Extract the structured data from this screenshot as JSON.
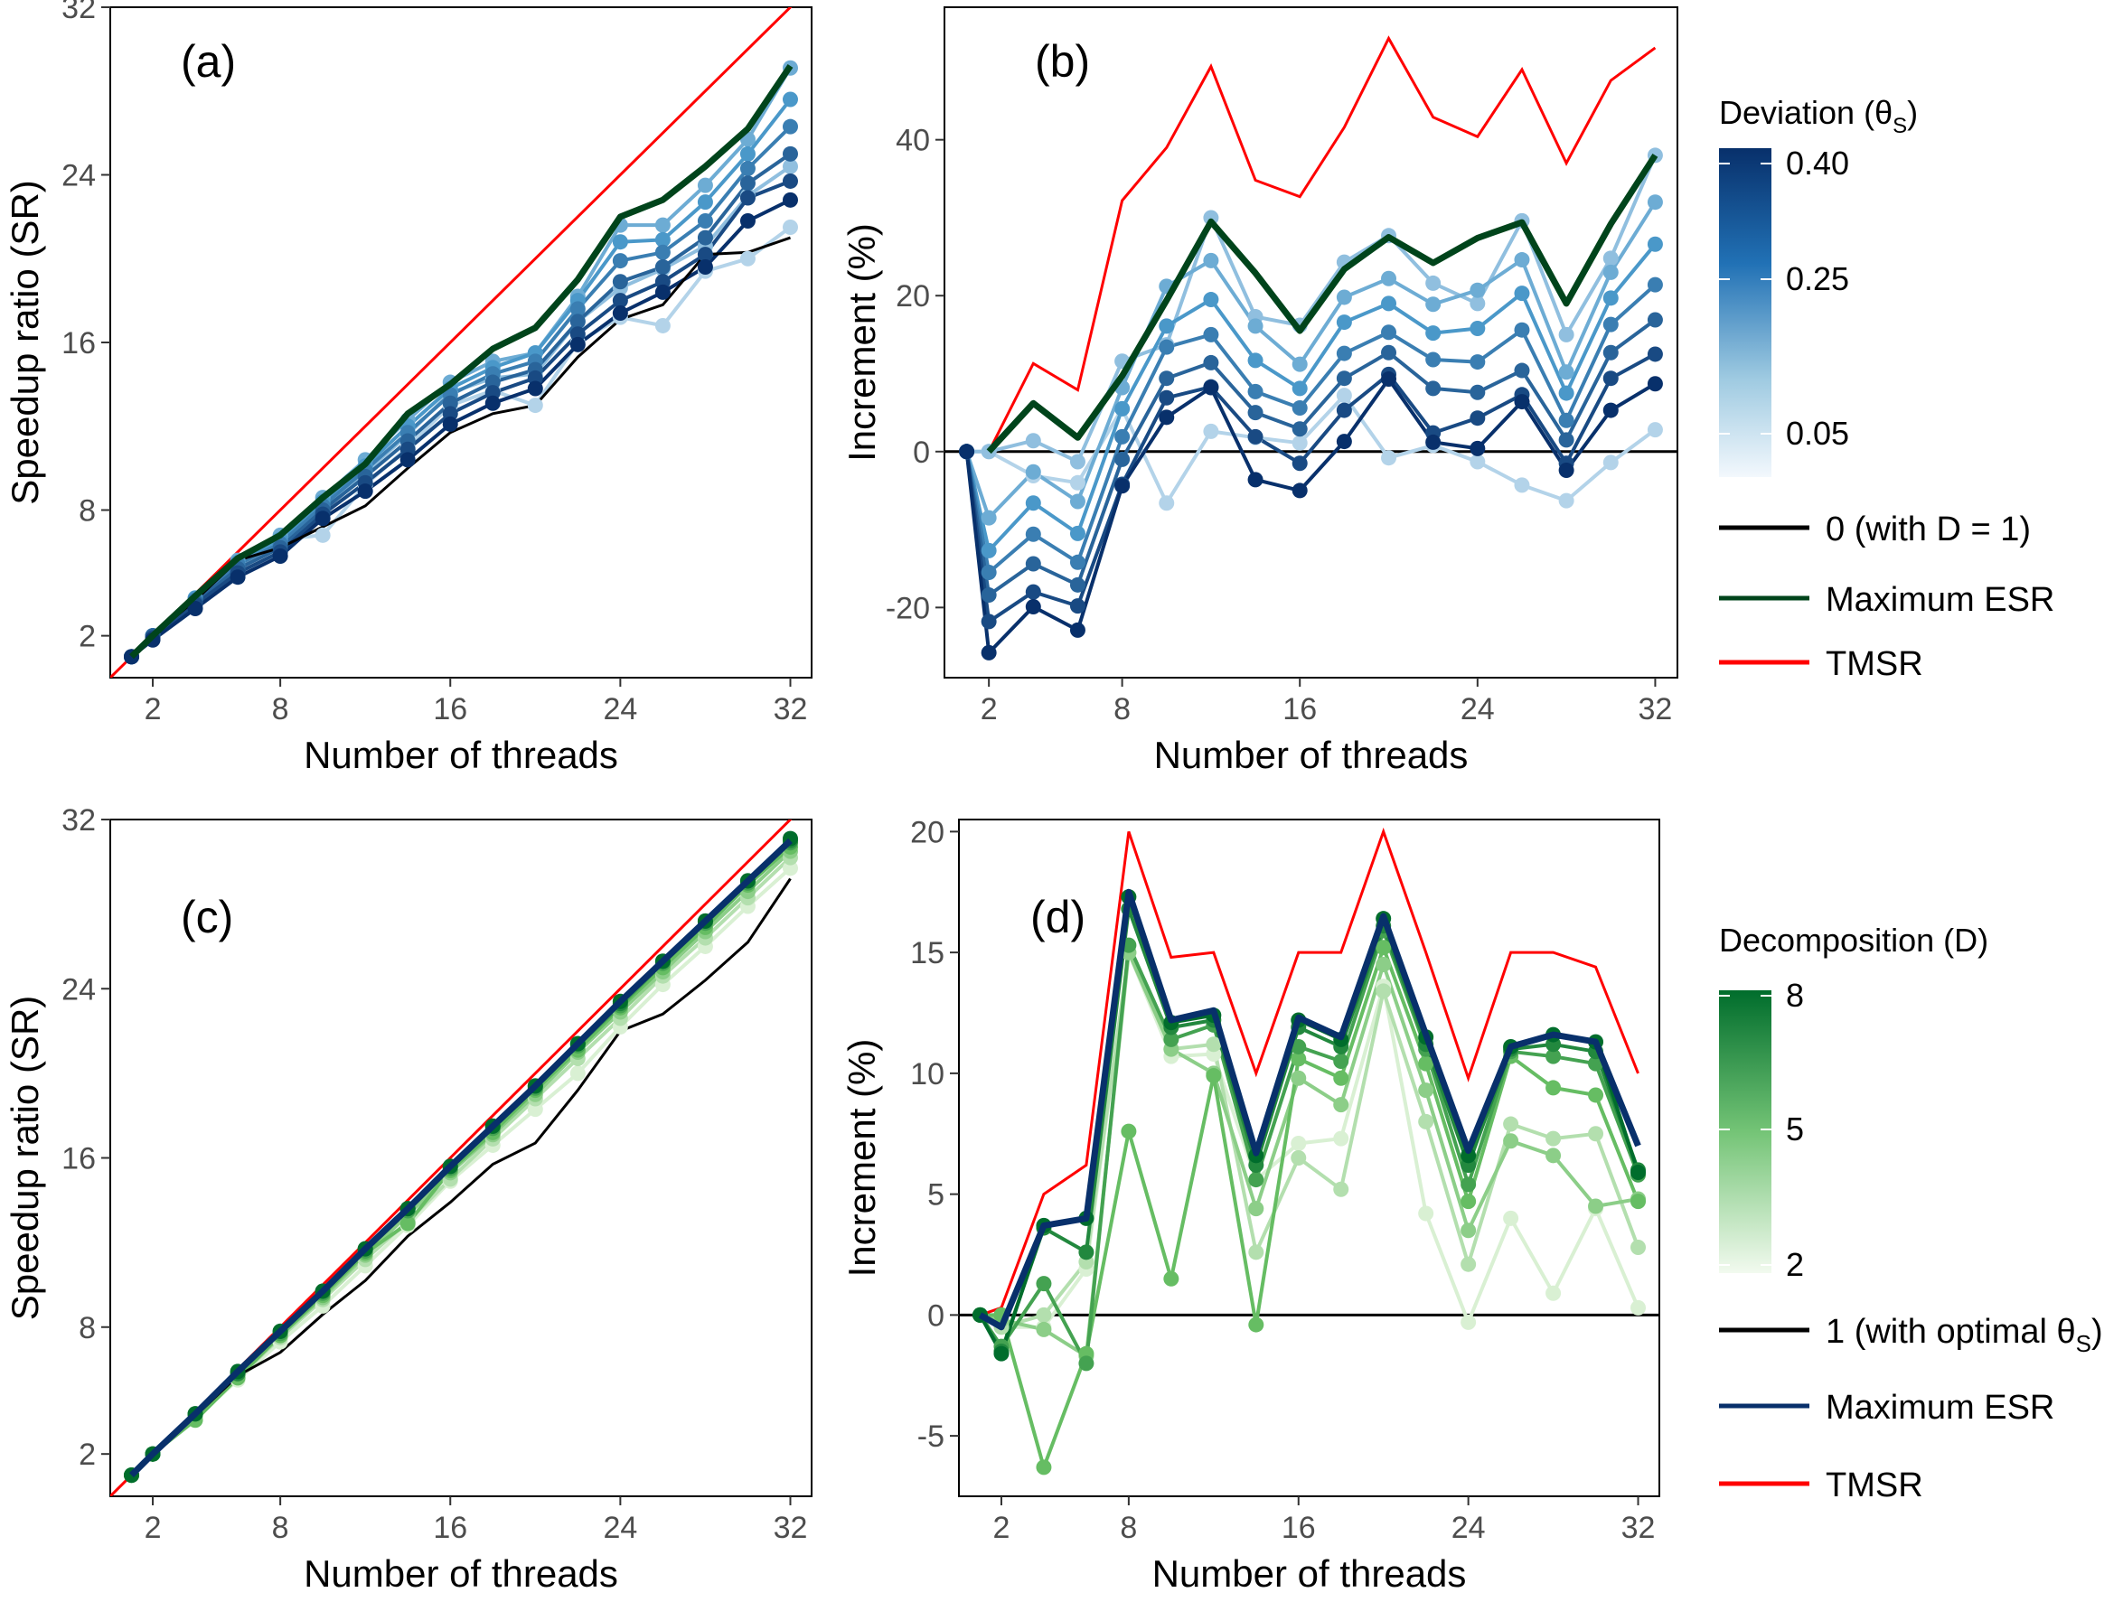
{
  "colors": {
    "tmsr": "#ff0000",
    "baseline": "#000000",
    "blue_dark": "#08306b",
    "blue_light": "#deebf7",
    "green_dark": "#00441b",
    "green_light": "#e5f5e0",
    "max_esr_top": "#00441b",
    "max_esr_bottom": "#08306b"
  },
  "legend_top": {
    "title_main": "Deviation (θ",
    "title_sub": "S",
    "title_end": ")",
    "colorbar_ticks": [
      "0.40",
      "0.25",
      "0.05"
    ],
    "colorbar_tick_values": [
      0.4,
      0.25,
      0.05
    ],
    "colorbar_range": [
      0.0,
      0.4
    ],
    "items": [
      {
        "label": "0 (with D = 1)",
        "color": "#000000"
      },
      {
        "label": "Maximum ESR",
        "color": "#00441b"
      },
      {
        "label": "TMSR",
        "color": "#ff0000"
      }
    ]
  },
  "legend_bottom": {
    "title": "Decomposition (D)",
    "colorbar_ticks": [
      "8",
      "5",
      "2"
    ],
    "colorbar_tick_values": [
      8,
      5,
      2
    ],
    "colorbar_range": [
      2,
      8
    ],
    "items": [
      {
        "label": "1 (with optimal θ",
        "sub": "S",
        "end": ")",
        "color": "#000000"
      },
      {
        "label": "Maximum ESR",
        "color": "#08306b"
      },
      {
        "label": "TMSR",
        "color": "#ff0000"
      }
    ]
  },
  "chart_data": [
    {
      "panel": "(a)",
      "type": "line",
      "xlabel": "Number of threads",
      "ylabel": "Speedup ratio (SR)",
      "xlim": [
        0,
        33
      ],
      "ylim": [
        0,
        32
      ],
      "x_ticks": [
        2,
        8,
        16,
        24,
        32
      ],
      "y_ticks": [
        2,
        8,
        16,
        24,
        32
      ],
      "x": [
        1,
        2,
        4,
        6,
        8,
        10,
        12,
        14,
        16,
        18,
        20,
        22,
        24,
        26,
        28,
        30,
        32
      ],
      "tmsr": {
        "x": [
          0,
          33
        ],
        "y": [
          0,
          33
        ]
      },
      "baseline": {
        "name": "0 (with D = 1)",
        "values": [
          1,
          2,
          3.7,
          5.6,
          6.2,
          7.2,
          8.2,
          10.0,
          11.7,
          12.6,
          13.0,
          15.3,
          17.1,
          17.8,
          20.2,
          20.3,
          21.0
        ]
      },
      "max_esr": {
        "name": "Maximum ESR",
        "values": [
          1,
          2,
          3.9,
          5.7,
          6.8,
          8.6,
          10.2,
          12.6,
          14.0,
          15.7,
          16.7,
          19.0,
          22.0,
          22.8,
          24.4,
          26.2,
          29.2
        ]
      },
      "deviation_series": [
        {
          "level": 0.05,
          "values": [
            1,
            2,
            3.6,
            5.5,
            6.6,
            6.8,
            9.2,
            11.0,
            13.0,
            13.7,
            13.0,
            16.0,
            17.2,
            16.8,
            19.4,
            20.0,
            21.5
          ]
        },
        {
          "level": 0.1,
          "values": [
            1,
            2,
            3.7,
            5.5,
            6.7,
            8.2,
            9.8,
            11.6,
            13.6,
            14.3,
            14.5,
            17.0,
            18.6,
            19.5,
            20.6,
            23.0,
            24.4
          ]
        },
        {
          "level": 0.15,
          "values": [
            1,
            2,
            3.8,
            5.6,
            6.8,
            8.6,
            10.4,
            12.3,
            14.1,
            15.1,
            15.5,
            18.2,
            21.6,
            21.6,
            23.5,
            25.7,
            29.1
          ]
        },
        {
          "level": 0.2,
          "values": [
            1,
            2,
            3.8,
            5.5,
            6.6,
            8.4,
            10.1,
            12.0,
            13.8,
            14.8,
            15.5,
            18.0,
            20.8,
            20.9,
            22.7,
            25.0,
            27.6
          ]
        },
        {
          "level": 0.25,
          "values": [
            1,
            2,
            3.7,
            5.4,
            6.4,
            8.2,
            9.9,
            11.7,
            13.5,
            14.5,
            15.1,
            17.6,
            19.9,
            20.3,
            21.8,
            24.3,
            26.3
          ]
        },
        {
          "level": 0.3,
          "values": [
            1,
            2,
            3.6,
            5.2,
            6.2,
            8.0,
            9.6,
            11.3,
            13.1,
            14.1,
            14.7,
            17.0,
            18.9,
            19.6,
            21.0,
            23.6,
            25.0
          ]
        },
        {
          "level": 0.35,
          "values": [
            1,
            1.9,
            3.5,
            5.0,
            6.0,
            7.8,
            9.3,
            10.9,
            12.6,
            13.6,
            14.3,
            16.4,
            18.0,
            18.9,
            20.2,
            22.9,
            23.7
          ]
        },
        {
          "level": 0.4,
          "values": [
            1,
            1.8,
            3.3,
            4.8,
            5.8,
            7.6,
            8.9,
            10.4,
            12.1,
            13.1,
            13.8,
            15.9,
            17.4,
            18.4,
            19.6,
            21.8,
            22.8
          ]
        }
      ]
    },
    {
      "panel": "(b)",
      "type": "line",
      "xlabel": "Number of threads",
      "ylabel": "Increment (%)",
      "xlim": [
        0,
        33
      ],
      "ylim": [
        -29,
        57
      ],
      "x_ticks": [
        2,
        8,
        16,
        24,
        32
      ],
      "y_ticks": [
        -20,
        0,
        20,
        40
      ],
      "x": [
        1,
        2,
        4,
        6,
        8,
        10,
        12,
        14,
        16,
        18,
        20,
        22,
        24,
        26,
        28,
        30,
        32
      ],
      "baseline": {
        "name": "0 (with D = 1)",
        "value": 0
      },
      "tmsr": {
        "name": "TMSR",
        "x": [
          2,
          4,
          6,
          8,
          10,
          12,
          14,
          16,
          18,
          20,
          22,
          24,
          26,
          28,
          30,
          32
        ],
        "values": [
          0,
          11.3,
          7.9,
          32.2,
          39.0,
          49.4,
          34.8,
          32.7,
          41.6,
          53.0,
          42.9,
          40.4,
          49.0,
          37.0,
          47.6,
          51.8
        ]
      },
      "max_esr": {
        "name": "Maximum ESR",
        "x": [
          2,
          4,
          6,
          8,
          10,
          12,
          14,
          16,
          18,
          20,
          22,
          24,
          26,
          28,
          30,
          32
        ],
        "values": [
          0,
          6.2,
          1.8,
          9.7,
          19.4,
          29.5,
          22.9,
          15.5,
          23.4,
          27.5,
          24.2,
          27.4,
          29.4,
          19.0,
          29.2,
          38.0
        ]
      },
      "deviation_series": [
        {
          "level": 0.05,
          "values": [
            0,
            0,
            -3.1,
            -4.0,
            5.5,
            -6.6,
            2.6,
            1.8,
            1.1,
            7.2,
            -0.8,
            0.8,
            -1.3,
            -4.3,
            -6.3,
            -1.4,
            2.8
          ]
        },
        {
          "level": 0.1,
          "values": [
            0,
            0,
            1.4,
            -1.3,
            11.6,
            13.7,
            30.0,
            17.3,
            16.2,
            24.3,
            27.7,
            21.6,
            19.0,
            29.6,
            15.0,
            24.8,
            38.0
          ]
        },
        {
          "level": 0.15,
          "values": [
            0,
            -8.5,
            -2.6,
            -6.4,
            8.2,
            21.2,
            24.5,
            16.1,
            11.2,
            19.8,
            22.2,
            18.9,
            20.7,
            24.6,
            10.2,
            23.0,
            32.0
          ]
        },
        {
          "level": 0.2,
          "values": [
            0,
            -12.7,
            -6.6,
            -10.5,
            5.5,
            16.1,
            19.5,
            11.7,
            8.1,
            16.6,
            19.0,
            15.2,
            15.8,
            20.3,
            7.5,
            19.7,
            26.6
          ]
        },
        {
          "level": 0.25,
          "values": [
            0,
            -15.5,
            -10.6,
            -14.2,
            1.9,
            13.4,
            15.0,
            7.7,
            5.6,
            12.6,
            15.3,
            11.8,
            11.5,
            15.6,
            4.0,
            16.3,
            21.4
          ]
        },
        {
          "level": 0.3,
          "values": [
            0,
            -18.4,
            -14.4,
            -17.1,
            -1.0,
            9.4,
            11.4,
            5.0,
            2.9,
            9.4,
            12.7,
            8.1,
            7.6,
            10.4,
            1.5,
            12.7,
            16.9
          ]
        },
        {
          "level": 0.35,
          "values": [
            0,
            -21.8,
            -18.0,
            -19.8,
            -4.2,
            6.9,
            8.3,
            1.9,
            -1.5,
            5.3,
            9.9,
            2.4,
            4.3,
            7.3,
            -1.5,
            9.4,
            12.5
          ]
        },
        {
          "level": 0.4,
          "values": [
            0,
            -25.8,
            -19.9,
            -22.9,
            -4.4,
            4.4,
            8.2,
            -3.6,
            -5.0,
            1.3,
            9.3,
            1.2,
            0.4,
            6.4,
            -2.4,
            5.3,
            8.7
          ]
        }
      ]
    },
    {
      "panel": "(c)",
      "type": "line",
      "xlabel": "Number of threads",
      "ylabel": "Speedup ratio (SR)",
      "xlim": [
        0,
        33
      ],
      "ylim": [
        0,
        32
      ],
      "x_ticks": [
        2,
        8,
        16,
        24,
        32
      ],
      "y_ticks": [
        2,
        8,
        16,
        24,
        32
      ],
      "x": [
        1,
        2,
        4,
        6,
        8,
        10,
        12,
        14,
        16,
        18,
        20,
        22,
        24,
        26,
        28,
        30,
        32
      ],
      "tmsr": {
        "x": [
          0,
          33
        ],
        "y": [
          0,
          33
        ]
      },
      "baseline": {
        "name": "1 (with optimal θS)",
        "values": [
          1,
          2,
          3.8,
          5.7,
          6.8,
          8.6,
          10.2,
          12.3,
          13.9,
          15.7,
          16.7,
          19.2,
          22.0,
          22.8,
          24.4,
          26.2,
          29.2
        ]
      },
      "max_esr": {
        "name": "Maximum ESR",
        "values": [
          1,
          2,
          3.9,
          5.9,
          7.8,
          9.7,
          11.7,
          13.6,
          15.6,
          17.5,
          19.4,
          21.4,
          23.4,
          25.3,
          27.2,
          29.1,
          31.0
        ]
      },
      "decomposition_series": [
        {
          "level": 2,
          "values": [
            1,
            2,
            3.7,
            5.5,
            7.3,
            9.0,
            10.9,
            12.8,
            14.9,
            16.6,
            18.3,
            20.0,
            22.2,
            24.2,
            26.0,
            27.9,
            29.7
          ]
        },
        {
          "level": 3,
          "values": [
            1,
            2,
            3.8,
            5.6,
            7.5,
            9.3,
            11.2,
            13.0,
            15.0,
            16.9,
            18.8,
            20.7,
            22.6,
            24.6,
            26.4,
            28.3,
            30.2
          ]
        },
        {
          "level": 4,
          "values": [
            1,
            2,
            3.8,
            5.7,
            7.6,
            9.4,
            11.4,
            13.3,
            15.3,
            17.1,
            19.0,
            21.0,
            22.9,
            24.8,
            26.7,
            28.6,
            30.5
          ]
        },
        {
          "level": 5,
          "values": [
            1,
            2,
            3.6,
            5.6,
            7.6,
            9.5,
            11.5,
            12.9,
            15.4,
            17.2,
            19.2,
            21.1,
            23.1,
            25.0,
            26.9,
            28.9,
            30.7
          ]
        },
        {
          "level": 6,
          "values": [
            1,
            2,
            3.9,
            5.8,
            7.7,
            9.6,
            11.6,
            13.5,
            15.5,
            17.4,
            19.3,
            21.3,
            23.2,
            25.2,
            27.1,
            29.0,
            30.9
          ]
        },
        {
          "level": 7,
          "values": [
            1,
            2,
            3.9,
            5.8,
            7.8,
            9.7,
            11.7,
            13.6,
            15.6,
            17.5,
            19.4,
            21.4,
            23.3,
            25.3,
            27.2,
            29.1,
            31.0
          ]
        },
        {
          "level": 8,
          "values": [
            1,
            2,
            3.9,
            5.9,
            7.8,
            9.7,
            11.7,
            13.6,
            15.6,
            17.5,
            19.4,
            21.4,
            23.4,
            25.3,
            27.2,
            29.1,
            31.1
          ]
        }
      ]
    },
    {
      "panel": "(d)",
      "type": "line",
      "xlabel": "Number of threads",
      "ylabel": "Increment (%)",
      "xlim": [
        0,
        33
      ],
      "ylim": [
        -7.5,
        20.5
      ],
      "x_ticks": [
        2,
        8,
        16,
        24,
        32
      ],
      "y_ticks": [
        -5,
        0,
        5,
        10,
        15,
        20
      ],
      "x": [
        1,
        2,
        4,
        6,
        8,
        10,
        12,
        14,
        16,
        18,
        20,
        22,
        24,
        26,
        28,
        30,
        32
      ],
      "baseline": {
        "name": "1 (with optimal θS)",
        "value": 0
      },
      "tmsr": {
        "name": "TMSR",
        "x": [
          1,
          2,
          4,
          6,
          8,
          10,
          12,
          14,
          16,
          18,
          20,
          22,
          24,
          26,
          28,
          30,
          32
        ],
        "values": [
          0,
          0.3,
          5.0,
          6.2,
          20.0,
          14.8,
          15.0,
          10.0,
          15.0,
          15.0,
          20.0,
          15.0,
          9.8,
          15.0,
          15.0,
          14.4,
          10.0
        ]
      },
      "max_esr": {
        "name": "Maximum ESR",
        "values": [
          0,
          -0.5,
          3.7,
          4.0,
          17.5,
          12.2,
          12.6,
          6.7,
          12.3,
          11.5,
          16.5,
          11.6,
          6.8,
          11.1,
          11.6,
          11.3,
          7.0
        ]
      },
      "decomposition_series": [
        {
          "level": 2,
          "values": [
            0,
            -0.5,
            -0.5,
            1.9,
            15.0,
            10.7,
            10.8,
            5.6,
            7.1,
            7.3,
            13.6,
            4.2,
            -0.3,
            4.0,
            0.9,
            4.4,
            0.3
          ]
        },
        {
          "level": 3,
          "values": [
            0,
            -0.5,
            0.0,
            2.2,
            15.0,
            11.0,
            11.2,
            2.6,
            6.5,
            5.2,
            13.4,
            8.0,
            2.1,
            7.9,
            7.3,
            7.5,
            2.8
          ]
        },
        {
          "level": 4,
          "values": [
            0,
            -0.2,
            -0.6,
            -1.7,
            15.0,
            11.0,
            10.0,
            4.4,
            9.8,
            8.7,
            14.5,
            9.3,
            3.5,
            7.2,
            6.6,
            4.5,
            4.8
          ]
        },
        {
          "level": 5,
          "values": [
            0,
            0.0,
            -6.3,
            -1.6,
            7.6,
            1.5,
            9.9,
            -0.4,
            10.6,
            9.8,
            15.2,
            10.4,
            4.7,
            10.7,
            9.4,
            9.1,
            4.7
          ]
        },
        {
          "level": 6,
          "values": [
            0,
            -1.3,
            1.3,
            -2.0,
            15.3,
            11.4,
            12.0,
            5.6,
            11.1,
            10.5,
            15.9,
            11.0,
            5.4,
            10.9,
            10.7,
            10.4,
            5.8
          ]
        },
        {
          "level": 7,
          "values": [
            0,
            -1.5,
            3.6,
            2.6,
            16.8,
            11.9,
            12.2,
            6.2,
            11.9,
            11.1,
            16.1,
            11.2,
            6.2,
            11.0,
            11.2,
            10.9,
            6.0
          ]
        },
        {
          "level": 8,
          "values": [
            0,
            -1.6,
            3.7,
            4.0,
            17.3,
            12.1,
            12.4,
            6.6,
            12.2,
            11.4,
            16.4,
            11.5,
            6.6,
            11.1,
            11.6,
            11.3,
            5.9
          ]
        }
      ]
    }
  ]
}
